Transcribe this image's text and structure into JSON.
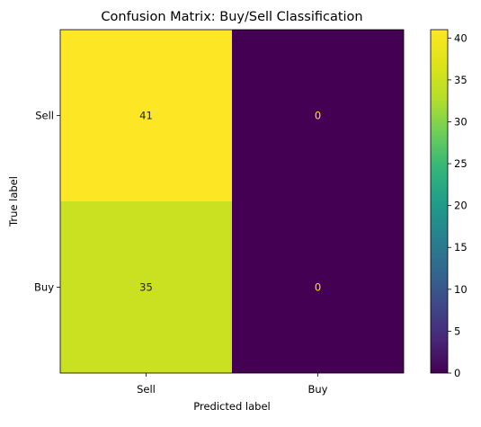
{
  "chart_data": {
    "type": "heatmap",
    "title": "Confusion Matrix: Buy/Sell Classification",
    "xlabel": "Predicted label",
    "ylabel": "True label",
    "x_categories": [
      "Sell",
      "Buy"
    ],
    "y_categories": [
      "Sell",
      "Buy"
    ],
    "values": [
      [
        41,
        0
      ],
      [
        35,
        0
      ]
    ],
    "colormap": "viridis",
    "vmin": 0,
    "vmax": 41,
    "colorbar_ticks": [
      0,
      5,
      10,
      15,
      20,
      25,
      30,
      35,
      40
    ],
    "grid": false
  }
}
